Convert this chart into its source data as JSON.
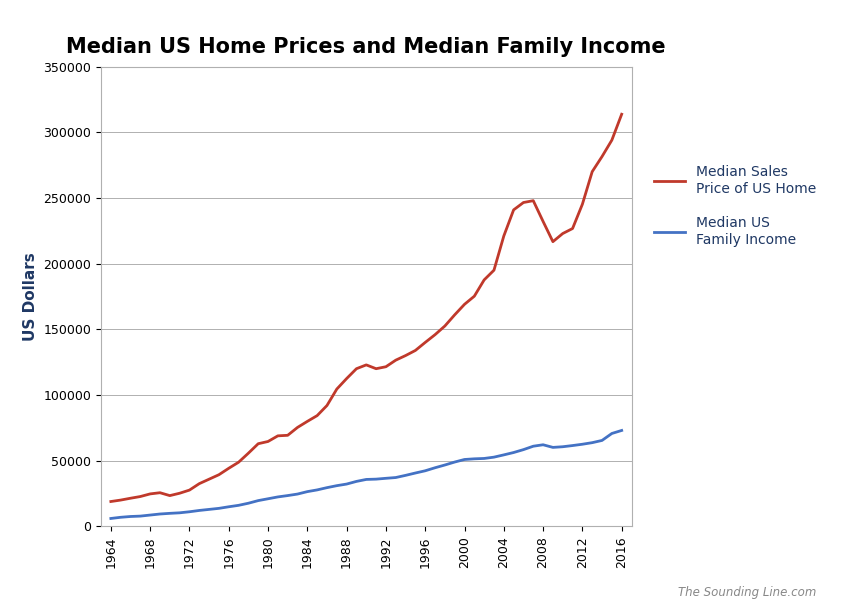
{
  "title": "Median US Home Prices and Median Family Income",
  "ylabel": "US Dollars",
  "watermark": "The Sounding Line.com",
  "ylim": [
    0,
    350000
  ],
  "yticks": [
    0,
    50000,
    100000,
    150000,
    200000,
    250000,
    300000,
    350000
  ],
  "home_price": {
    "years": [
      1964,
      1965,
      1966,
      1967,
      1968,
      1969,
      1970,
      1971,
      1972,
      1973,
      1974,
      1975,
      1976,
      1977,
      1978,
      1979,
      1980,
      1981,
      1982,
      1983,
      1984,
      1985,
      1986,
      1987,
      1988,
      1989,
      1990,
      1991,
      1992,
      1993,
      1994,
      1995,
      1996,
      1997,
      1998,
      1999,
      2000,
      2001,
      2002,
      2003,
      2004,
      2005,
      2006,
      2007,
      2008,
      2009,
      2010,
      2011,
      2012,
      2013,
      2014,
      2015,
      2016
    ],
    "values": [
      18900,
      20000,
      21400,
      22700,
      24700,
      25600,
      23400,
      25200,
      27600,
      32500,
      35900,
      39300,
      44200,
      48800,
      55700,
      62900,
      64600,
      68900,
      69300,
      75300,
      79900,
      84300,
      92000,
      104500,
      112500,
      120000,
      122900,
      120000,
      121500,
      126500,
      130000,
      133900,
      140000,
      145900,
      152500,
      161000,
      169000,
      175200,
      187600,
      195000,
      221000,
      240900,
      246500,
      247900,
      232100,
      216700,
      222900,
      226700,
      245200,
      270000,
      281500,
      294000,
      313700
    ],
    "color": "#c0392b",
    "label": "Median Sales\nPrice of US Home"
  },
  "family_income": {
    "years": [
      1964,
      1965,
      1966,
      1967,
      1968,
      1969,
      1970,
      1971,
      1972,
      1973,
      1974,
      1975,
      1976,
      1977,
      1978,
      1979,
      1980,
      1981,
      1982,
      1983,
      1984,
      1985,
      1986,
      1987,
      1988,
      1989,
      1990,
      1991,
      1992,
      1993,
      1994,
      1995,
      1996,
      1997,
      1998,
      1999,
      2000,
      2001,
      2002,
      2003,
      2004,
      2005,
      2006,
      2007,
      2008,
      2009,
      2010,
      2011,
      2012,
      2013,
      2014,
      2015,
      2016
    ],
    "values": [
      6000,
      6900,
      7500,
      7800,
      8600,
      9400,
      9900,
      10300,
      11100,
      12100,
      12900,
      13700,
      14900,
      16000,
      17600,
      19600,
      21000,
      22400,
      23430,
      24580,
      26430,
      27740,
      29460,
      30970,
      32190,
      34210,
      35710,
      35940,
      36570,
      37160,
      38810,
      40600,
      42300,
      44600,
      46700,
      48950,
      50900,
      51400,
      51680,
      52680,
      54400,
      56200,
      58400,
      61000,
      62100,
      60100,
      60600,
      61500,
      62500,
      63700,
      65400,
      70700,
      73000
    ],
    "color": "#4472c4",
    "label": "Median US\nFamily Income"
  },
  "xtick_years": [
    1964,
    1968,
    1972,
    1976,
    1980,
    1984,
    1988,
    1992,
    1996,
    2000,
    2004,
    2008,
    2012,
    2016
  ],
  "background_color": "#ffffff",
  "plot_bg_color": "#ffffff",
  "grid_color": "#b0b0b0",
  "border_color": "#b0b0b0",
  "legend_text_color": "#1f3864",
  "title_color": "#000000",
  "axis_label_color": "#1f3864"
}
